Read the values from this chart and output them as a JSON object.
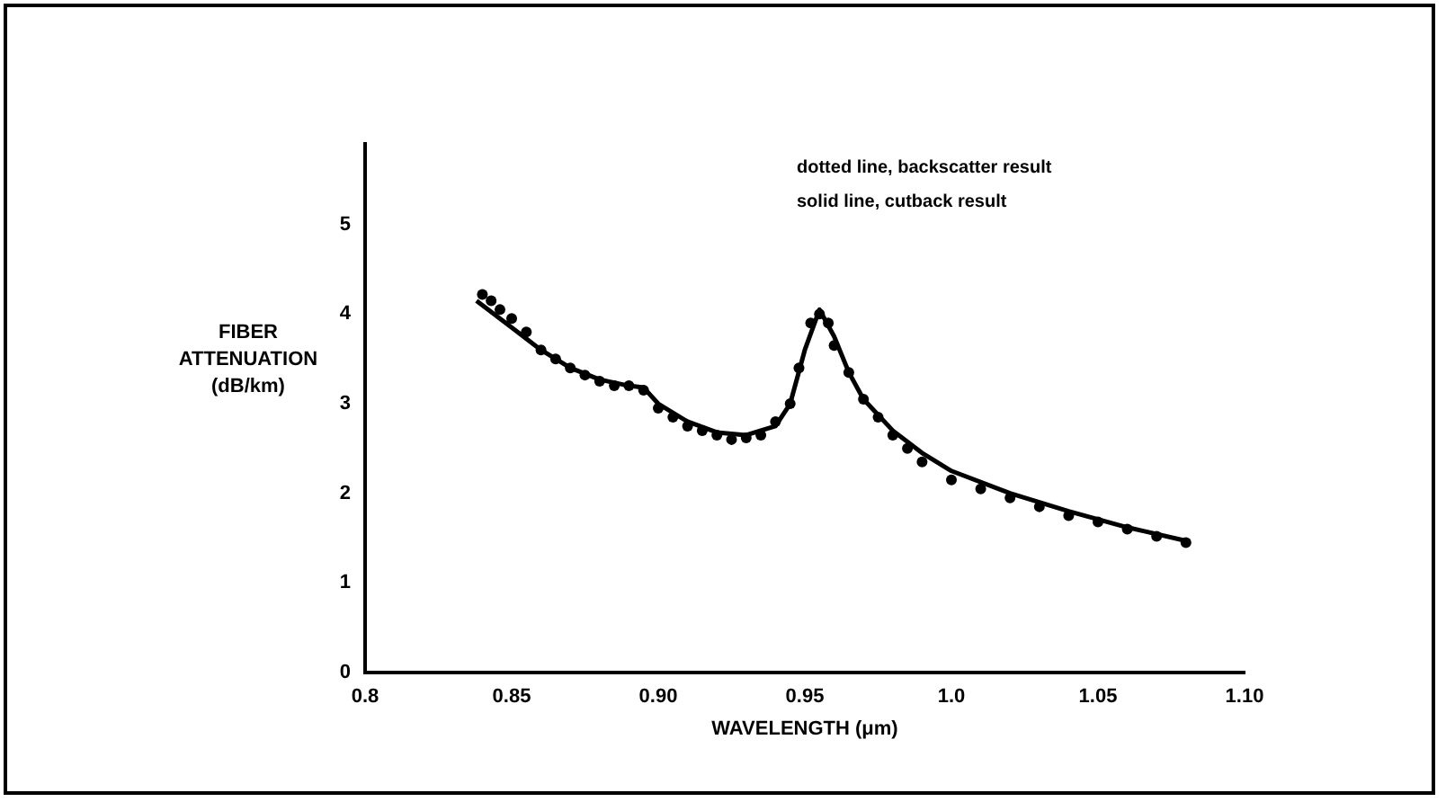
{
  "chart_data": {
    "type": "line",
    "xlabel": "WAVELENGTH (μm)",
    "ylabel": "FIBER ATTENUATION (dB/km)",
    "annotations": [
      "dotted line, backscatter result",
      "solid line, cutback result"
    ],
    "xlim": [
      0.8,
      1.1
    ],
    "xticks": [
      0.8,
      0.85,
      {
        "value": 0.9,
        "label": "0.90"
      },
      0.95,
      {
        "value": 1.0,
        "label": "1.0"
      },
      1.05,
      {
        "value": 1.1,
        "label": "1.10"
      }
    ],
    "ylim": [
      0,
      5.9
    ],
    "yticks": [
      0,
      1,
      2,
      3,
      4,
      5
    ],
    "grid": false,
    "legend": false,
    "series": [
      {
        "type": "scatter",
        "marker": "circle",
        "color": "#000000",
        "x": [
          0.84,
          0.843,
          0.846,
          0.85,
          0.855,
          0.86,
          0.865,
          0.87,
          0.875,
          0.88,
          0.885,
          0.89,
          0.895,
          0.9,
          0.905,
          0.91,
          0.915,
          0.92,
          0.925,
          0.93,
          0.935,
          0.94,
          0.945,
          0.948,
          0.952,
          0.955,
          0.958,
          0.96,
          0.965,
          0.97,
          0.975,
          0.98,
          0.985,
          0.99,
          1.0,
          1.01,
          1.02,
          1.03,
          1.04,
          1.05,
          1.06,
          1.07,
          1.08
        ],
        "values": [
          4.22,
          4.15,
          4.05,
          3.95,
          3.8,
          3.6,
          3.5,
          3.4,
          3.32,
          3.25,
          3.2,
          3.2,
          3.15,
          2.95,
          2.85,
          2.75,
          2.7,
          2.65,
          2.6,
          2.62,
          2.65,
          2.8,
          3.0,
          3.4,
          3.9,
          4.0,
          3.9,
          3.65,
          3.35,
          3.05,
          2.85,
          2.65,
          2.5,
          2.35,
          2.15,
          2.05,
          1.95,
          1.85,
          1.75,
          1.68,
          1.6,
          1.52,
          1.45
        ]
      },
      {
        "marker": "none",
        "color": "#000000",
        "x": [
          0.838,
          0.85,
          0.86,
          0.87,
          0.88,
          0.89,
          0.895,
          0.9,
          0.91,
          0.92,
          0.93,
          0.94,
          0.945,
          0.95,
          0.955,
          0.96,
          0.965,
          0.97,
          0.98,
          0.99,
          1.0,
          1.02,
          1.04,
          1.06,
          1.08
        ],
        "values": [
          4.15,
          3.85,
          3.6,
          3.4,
          3.27,
          3.2,
          3.18,
          3.0,
          2.8,
          2.68,
          2.65,
          2.75,
          3.0,
          3.6,
          4.05,
          3.75,
          3.35,
          3.05,
          2.7,
          2.45,
          2.25,
          2.0,
          1.8,
          1.62,
          1.47
        ]
      }
    ]
  }
}
